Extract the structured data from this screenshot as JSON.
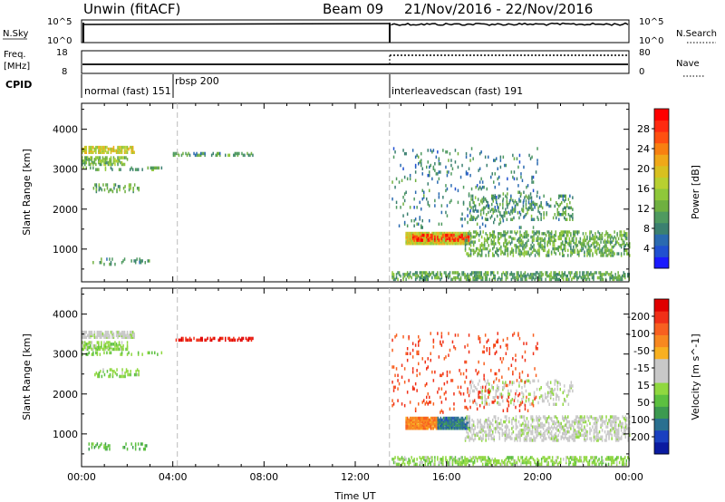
{
  "header": {
    "station": "Unwin (fitACF)",
    "beam": "Beam 09",
    "dates": "21/Nov/2016 - 22/Nov/2016"
  },
  "top_panels": {
    "nsky_label": "N.Sky",
    "nsky_ticks": [
      "10^5",
      "10^0"
    ],
    "nsearch_label": "N.Search",
    "nsearch_ticks": [
      "10^5",
      "10^0"
    ],
    "freq_label_line1": "Freq.",
    "freq_label_line2": "[MHz]",
    "freq_ticks": [
      "18",
      "8"
    ],
    "nave_label": "Nave",
    "nave_ticks": [
      "80",
      "0"
    ],
    "cpid_label": "CPID",
    "cpid_segments": [
      {
        "label": "normal (fast) 151",
        "start_h": 0
      },
      {
        "label": "rbsp 200",
        "start_h": 4.2
      },
      {
        "label": "interleavedscan (fast) 191",
        "start_h": 13.5
      }
    ]
  },
  "chart_data": [
    {
      "type": "heatmap",
      "title": "Power",
      "xlabel": "",
      "ylabel": "Slant Range [km]",
      "xlim_hours": [
        0,
        24
      ],
      "ylim": [
        180,
        4650
      ],
      "x_tick_labels": [
        "00:00",
        "04:00",
        "08:00",
        "12:00",
        "16:00",
        "20:00",
        "00:00"
      ],
      "y_ticks": [
        1000,
        2000,
        3000,
        4000
      ],
      "colorbar": {
        "label": "Power [dB]",
        "tick_labels": [
          "4",
          "8",
          "12",
          "16",
          "20",
          "24",
          "28"
        ],
        "range": [
          0,
          32
        ],
        "colors": [
          "#1a1aff",
          "#2050d0",
          "#2a6ab0",
          "#3b8070",
          "#4f9a60",
          "#6fb040",
          "#8fc83a",
          "#b8d030",
          "#d8c020",
          "#f0a818",
          "#f88010",
          "#ff5010",
          "#ff2a10",
          "#ff0000"
        ]
      },
      "features": [
        {
          "t0": 0,
          "t1": 2.3,
          "r0": 3380,
          "r1": 3520,
          "level": 18,
          "density": 0.7
        },
        {
          "t0": 0,
          "t1": 2.0,
          "r0": 3080,
          "r1": 3260,
          "level": 13,
          "density": 0.55
        },
        {
          "t0": 0,
          "t1": 3.5,
          "r0": 2950,
          "r1": 3020,
          "level": 11,
          "density": 0.25
        },
        {
          "t0": 0.5,
          "t1": 2.5,
          "r0": 2400,
          "r1": 2600,
          "level": 12,
          "density": 0.25
        },
        {
          "t0": 0.3,
          "t1": 3.0,
          "r0": 580,
          "r1": 720,
          "level": 10,
          "density": 0.15
        },
        {
          "t0": 4.0,
          "t1": 7.5,
          "r0": 3310,
          "r1": 3370,
          "level": 10,
          "density": 0.35
        },
        {
          "t0": 14.2,
          "t1": 17.0,
          "r0": 1100,
          "r1": 1380,
          "level": 18,
          "density": 0.92
        },
        {
          "t0": 14.5,
          "t1": 17.0,
          "r0": 1180,
          "r1": 1340,
          "level": 28,
          "density": 0.5
        },
        {
          "t0": 16.8,
          "t1": 24,
          "r0": 800,
          "r1": 1400,
          "level": 12,
          "density": 0.35
        },
        {
          "t0": 17.0,
          "t1": 21.5,
          "r0": 1700,
          "r1": 2300,
          "level": 10,
          "density": 0.2
        },
        {
          "t0": 13.6,
          "t1": 24,
          "r0": 200,
          "r1": 400,
          "level": 11,
          "density": 0.45
        },
        {
          "t0": 13.6,
          "t1": 20.0,
          "r0": 1500,
          "r1": 3500,
          "level": 8,
          "density": 0.05
        }
      ]
    },
    {
      "type": "heatmap",
      "title": "Velocity",
      "xlabel": "Time UT",
      "ylabel": "Slant Range [km]",
      "xlim_hours": [
        0,
        24
      ],
      "ylim": [
        180,
        4650
      ],
      "x_tick_labels": [
        "00:00",
        "04:00",
        "08:00",
        "12:00",
        "16:00",
        "20:00",
        "00:00"
      ],
      "y_ticks": [
        1000,
        2000,
        3000,
        4000
      ],
      "colorbar": {
        "label": "Velocity [m s^-1]",
        "tick_labels": [
          "200",
          "100",
          "50",
          "15",
          "-15",
          "-50",
          "-100",
          "-200"
        ],
        "range": [
          250,
          -250
        ],
        "colors": [
          "#0a1aa0",
          "#1a40c0",
          "#2a7090",
          "#3c9a50",
          "#5cc040",
          "#90d840",
          "#c8c8c8",
          "#c8c8c8",
          "#f8b020",
          "#f88820",
          "#f86020",
          "#f03018",
          "#e00000"
        ]
      },
      "features": [
        {
          "t0": 0,
          "t1": 2.3,
          "r0": 3380,
          "r1": 3520,
          "level": -5,
          "density": 0.7
        },
        {
          "t0": 0,
          "t1": 2.0,
          "r0": 3080,
          "r1": 3260,
          "level": 40,
          "density": 0.55
        },
        {
          "t0": 0,
          "t1": 3.5,
          "r0": 2950,
          "r1": 3020,
          "level": 60,
          "density": 0.25
        },
        {
          "t0": 0.5,
          "t1": 2.5,
          "r0": 2400,
          "r1": 2600,
          "level": 45,
          "density": 0.25
        },
        {
          "t0": 0.3,
          "t1": 3.0,
          "r0": 580,
          "r1": 720,
          "level": 80,
          "density": 0.15
        },
        {
          "t0": 4.0,
          "t1": 7.5,
          "r0": 3310,
          "r1": 3370,
          "level": -220,
          "density": 0.5
        },
        {
          "t0": 14.2,
          "t1": 15.6,
          "r0": 1100,
          "r1": 1380,
          "level": -120,
          "density": 0.92
        },
        {
          "t0": 15.6,
          "t1": 17.0,
          "r0": 1100,
          "r1": 1380,
          "level": 150,
          "density": 0.85
        },
        {
          "t0": 16.8,
          "t1": 24,
          "r0": 800,
          "r1": 1400,
          "level": 0,
          "density": 0.35
        },
        {
          "t0": 17.0,
          "t1": 21.5,
          "r0": 1700,
          "r1": 2300,
          "level": 5,
          "density": 0.2
        },
        {
          "t0": 13.6,
          "t1": 24,
          "r0": 200,
          "r1": 400,
          "level": 40,
          "density": 0.45
        },
        {
          "t0": 13.6,
          "t1": 20.0,
          "r0": 1500,
          "r1": 3500,
          "level": -180,
          "density": 0.05
        }
      ]
    }
  ]
}
